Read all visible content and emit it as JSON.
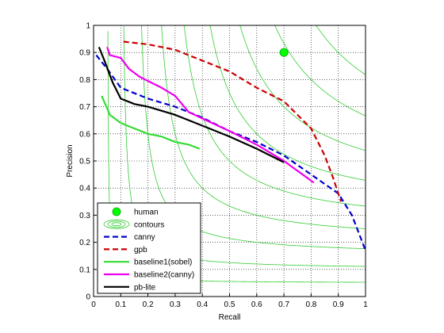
{
  "chart_data": {
    "type": "line",
    "title": "",
    "xlabel": "Recall",
    "ylabel": "Precision",
    "xlim": [
      0,
      1
    ],
    "ylim": [
      0,
      1
    ],
    "xticks": [
      "0",
      "0.1",
      "0.2",
      "0.3",
      "0.4",
      "0.5",
      "0.6",
      "0.7",
      "0.8",
      "0.9",
      "1"
    ],
    "yticks": [
      "0",
      "0.1",
      "0.2",
      "0.3",
      "0.4",
      "0.5",
      "0.6",
      "0.7",
      "0.8",
      "0.9",
      "1"
    ],
    "grid": true,
    "legend_position": "bottom-left",
    "contour_color": "#33cc33",
    "contours_f": [
      0.1,
      0.2,
      0.3,
      0.4,
      0.5,
      0.6,
      0.7,
      0.8,
      0.9
    ],
    "human": {
      "name": "human",
      "recall": 0.7,
      "precision": 0.9,
      "color": "#00ff00"
    },
    "contours_legend": "contours",
    "series": [
      {
        "name": "canny",
        "color": "#0000cc",
        "style": "dashed",
        "points": [
          [
            0.01,
            0.89
          ],
          [
            0.05,
            0.84
          ],
          [
            0.1,
            0.77
          ],
          [
            0.2,
            0.73
          ],
          [
            0.3,
            0.7
          ],
          [
            0.4,
            0.66
          ],
          [
            0.5,
            0.61
          ],
          [
            0.6,
            0.57
          ],
          [
            0.7,
            0.52
          ],
          [
            0.8,
            0.45
          ],
          [
            0.9,
            0.38
          ],
          [
            0.95,
            0.3
          ],
          [
            1.0,
            0.17
          ]
        ]
      },
      {
        "name": "gpb",
        "color": "#cc0000",
        "style": "dashed",
        "points": [
          [
            0.11,
            0.94
          ],
          [
            0.2,
            0.93
          ],
          [
            0.3,
            0.91
          ],
          [
            0.4,
            0.87
          ],
          [
            0.5,
            0.83
          ],
          [
            0.6,
            0.77
          ],
          [
            0.7,
            0.72
          ],
          [
            0.75,
            0.67
          ],
          [
            0.8,
            0.62
          ],
          [
            0.85,
            0.52
          ],
          [
            0.88,
            0.44
          ],
          [
            0.9,
            0.38
          ],
          [
            0.91,
            0.35
          ]
        ]
      },
      {
        "name": "baseline1(sobel)",
        "color": "#33dd33",
        "style": "solid",
        "points": [
          [
            0.03,
            0.74
          ],
          [
            0.06,
            0.67
          ],
          [
            0.1,
            0.64
          ],
          [
            0.15,
            0.62
          ],
          [
            0.2,
            0.6
          ],
          [
            0.25,
            0.59
          ],
          [
            0.3,
            0.57
          ],
          [
            0.35,
            0.56
          ],
          [
            0.39,
            0.545
          ]
        ]
      },
      {
        "name": "baseline2(canny)",
        "color": "#ee00ee",
        "style": "solid",
        "points": [
          [
            0.05,
            0.92
          ],
          [
            0.06,
            0.89
          ],
          [
            0.1,
            0.88
          ],
          [
            0.13,
            0.84
          ],
          [
            0.17,
            0.81
          ],
          [
            0.25,
            0.77
          ],
          [
            0.3,
            0.74
          ],
          [
            0.35,
            0.68
          ],
          [
            0.5,
            0.61
          ],
          [
            0.6,
            0.56
          ],
          [
            0.7,
            0.5
          ],
          [
            0.81,
            0.42
          ]
        ]
      },
      {
        "name": "pb-lite",
        "color": "#000000",
        "style": "solid",
        "points": [
          [
            0.02,
            0.92
          ],
          [
            0.04,
            0.87
          ],
          [
            0.07,
            0.79
          ],
          [
            0.1,
            0.73
          ],
          [
            0.15,
            0.71
          ],
          [
            0.2,
            0.7
          ],
          [
            0.3,
            0.67
          ],
          [
            0.4,
            0.63
          ],
          [
            0.5,
            0.59
          ],
          [
            0.6,
            0.545
          ],
          [
            0.7,
            0.495
          ]
        ]
      }
    ]
  }
}
